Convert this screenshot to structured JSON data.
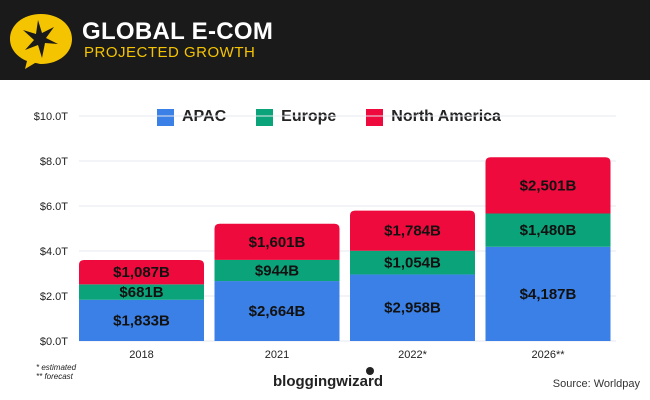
{
  "header": {
    "title": "GLOBAL E-COM",
    "subtitle": "PROJECTED GROWTH"
  },
  "chart_data": {
    "type": "bar",
    "stacked": true,
    "categories": [
      "2018",
      "2021",
      "2022*",
      "2026**"
    ],
    "series": [
      {
        "name": "APAC",
        "color": "#3b80e6",
        "values": [
          1833,
          2664,
          2958,
          4187
        ],
        "labels": [
          "$1,833B",
          "$2,664B",
          "$2,958B",
          "$4,187B"
        ]
      },
      {
        "name": "Europe",
        "color": "#0ba47a",
        "values": [
          681,
          944,
          1054,
          1480
        ],
        "labels": [
          "$681B",
          "$944B",
          "$1,054B",
          "$1,480B"
        ]
      },
      {
        "name": "North America",
        "color": "#ee0a3c",
        "values": [
          1087,
          1601,
          1784,
          2501
        ],
        "labels": [
          "$1,087B",
          "$1,601B",
          "$1,784B",
          "$2,501B"
        ]
      }
    ],
    "yticks": [
      "$0.0T",
      "$2.0T",
      "$4.0T",
      "$6.0T",
      "$8.0T",
      "$10.0T"
    ],
    "ylim": [
      0,
      10000
    ],
    "ylabel": "",
    "xlabel": "",
    "grid": true,
    "legend": "top"
  },
  "footer": {
    "note1": "* estimated",
    "note2": "** forecast",
    "brand": "bloggingwizard",
    "source": "Source: Worldpay"
  }
}
